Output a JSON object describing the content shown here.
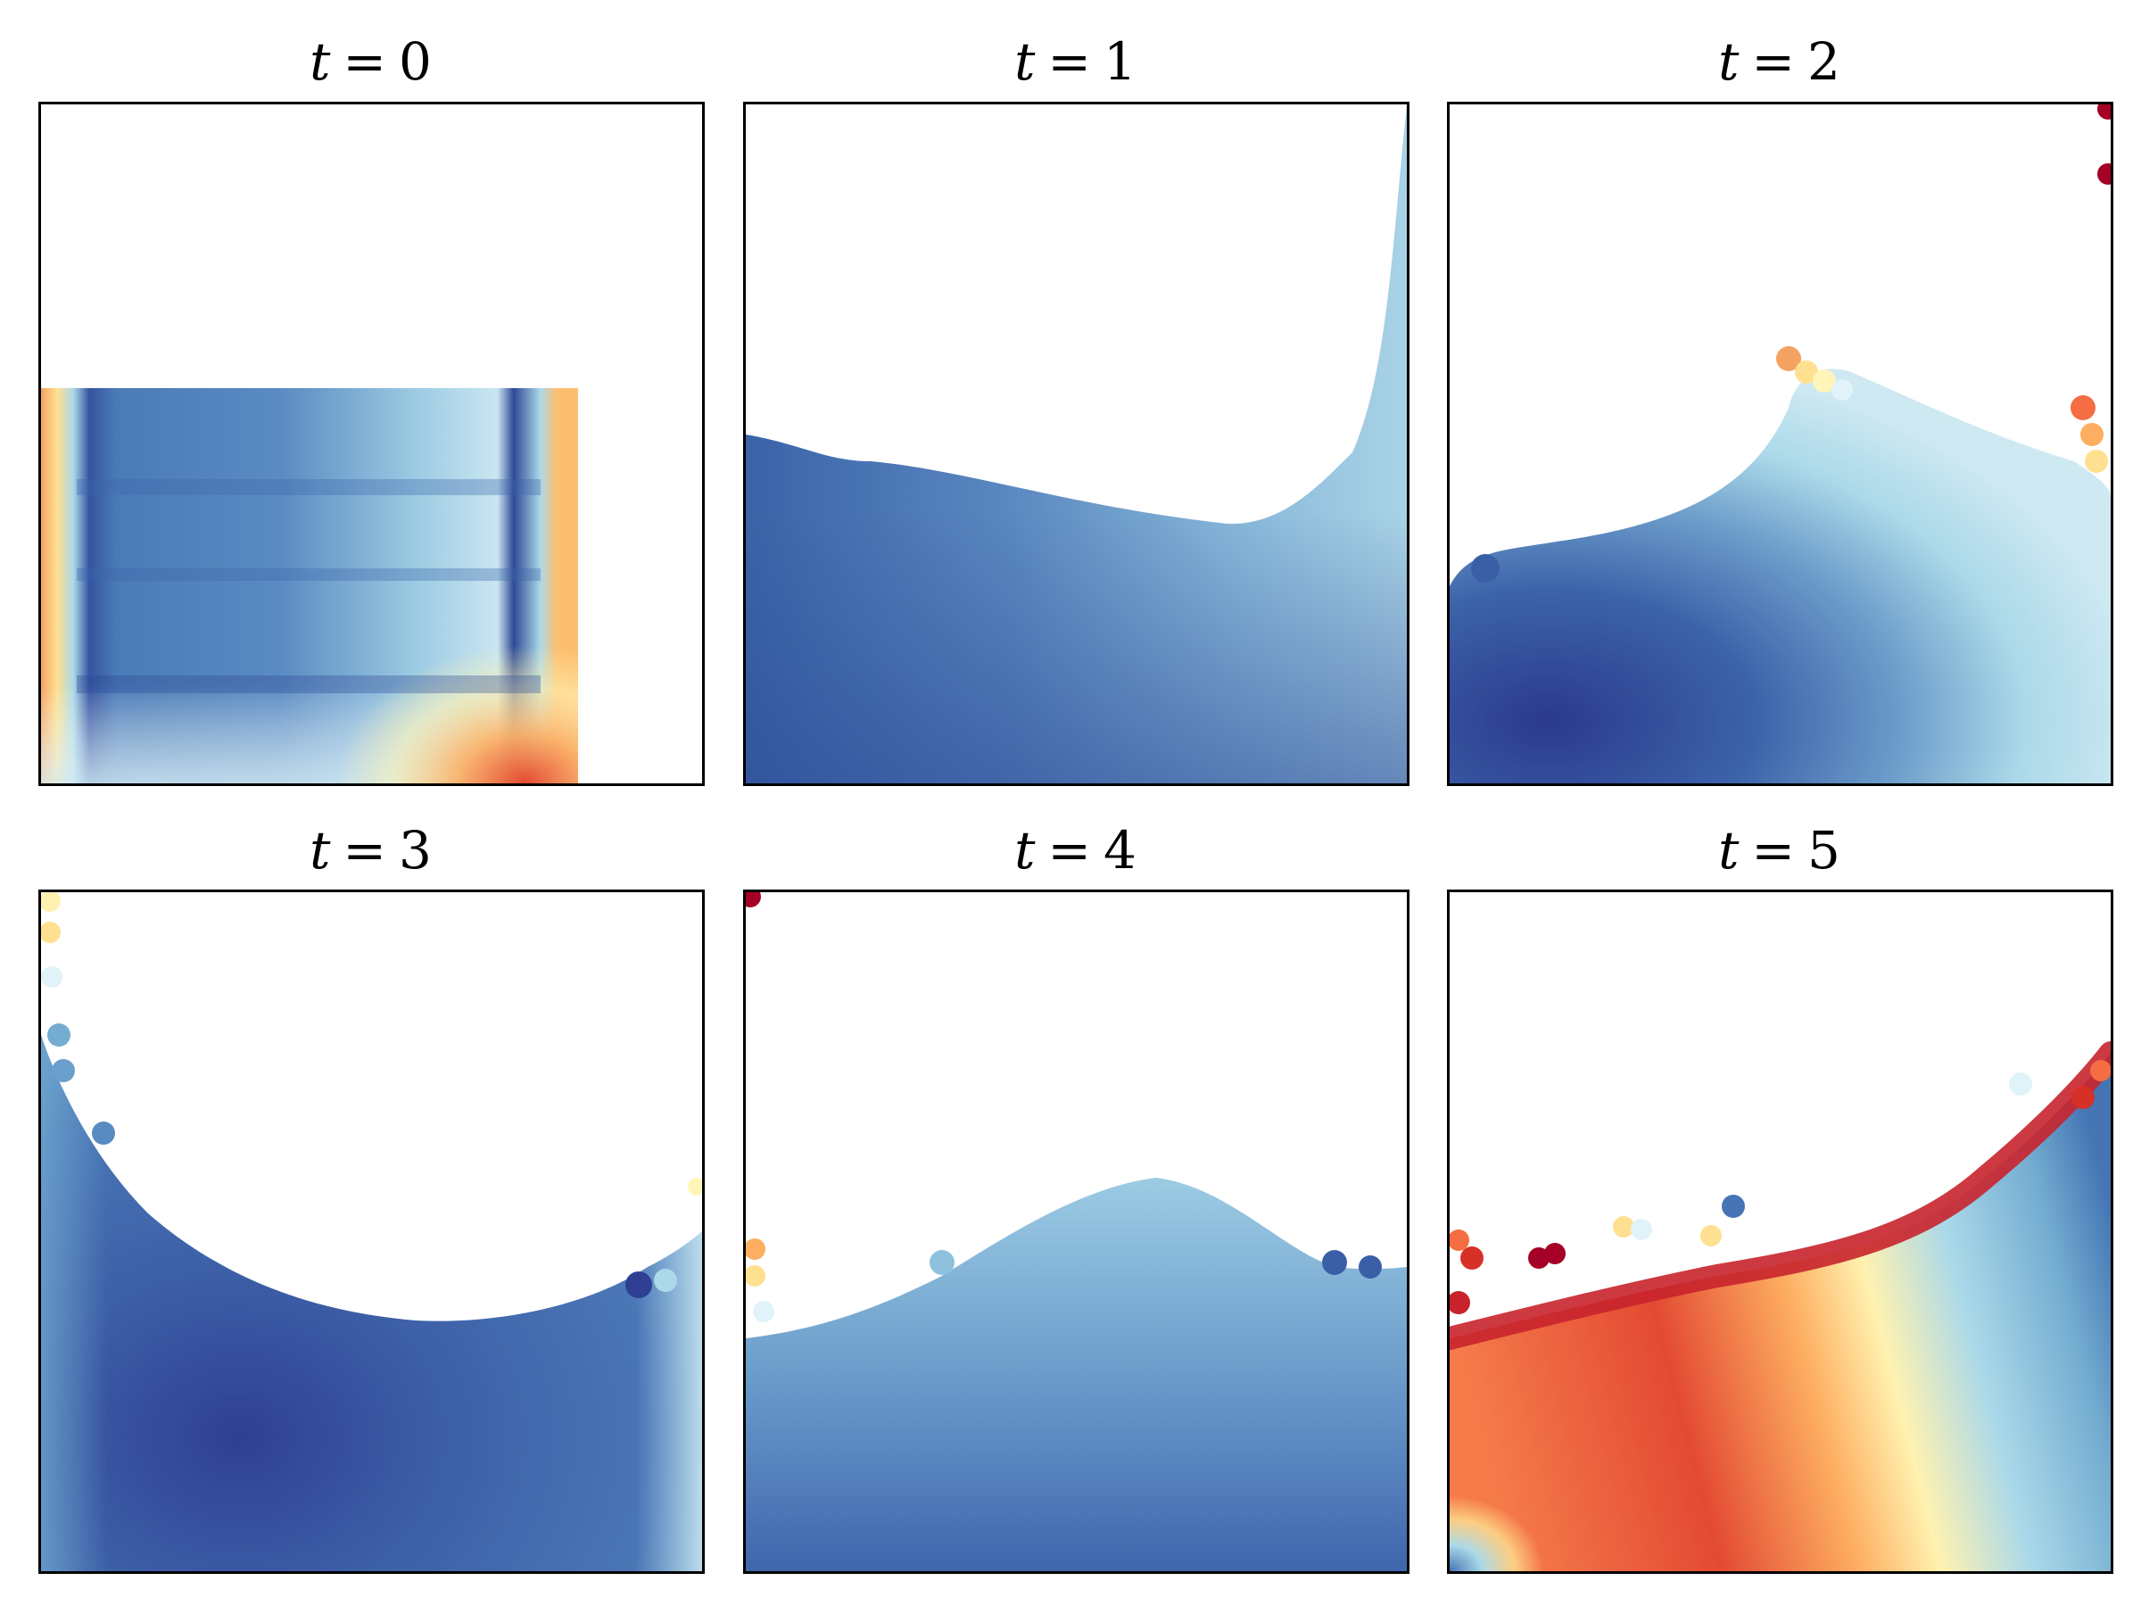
{
  "chart_data": [
    {
      "type": "scatter",
      "title_var": "t",
      "title_eq": "=",
      "title_val": "0",
      "xlim": [
        0,
        1
      ],
      "ylim": [
        0,
        1
      ],
      "fluid_region": "dam block on left, x 0–0.81, height 0–0.58",
      "colormap": "RdYlBu",
      "dominant_colors": [
        "#4575b4",
        "#abd9e9",
        "#fee090",
        "#d73027"
      ],
      "ticks_visible": false
    },
    {
      "type": "scatter",
      "title_var": "t",
      "title_eq": "=",
      "title_val": "1",
      "xlim": [
        0,
        1
      ],
      "ylim": [
        0,
        1
      ],
      "fluid_region": "spread across floor, run-up on right wall",
      "colormap": "RdYlBu",
      "dominant_colors": [
        "#3a63a8",
        "#6e9ecb",
        "#abd9e9"
      ],
      "ticks_visible": false
    },
    {
      "type": "scatter",
      "title_var": "t",
      "title_eq": "=",
      "title_val": "2",
      "xlim": [
        0,
        1
      ],
      "ylim": [
        0,
        1
      ],
      "fluid_region": "wave curling back from right wall",
      "colormap": "RdYlBu",
      "dominant_colors": [
        "#313695",
        "#4575b4",
        "#abd9e9",
        "#fdae61",
        "#a50026"
      ],
      "ticks_visible": false
    },
    {
      "type": "scatter",
      "title_var": "t",
      "title_eq": "=",
      "title_val": "3",
      "xlim": [
        0,
        1
      ],
      "ylim": [
        0,
        1
      ],
      "fluid_region": "bowl-shaped free surface, splash on left wall",
      "colormap": "RdYlBu",
      "dominant_colors": [
        "#313695",
        "#4575b4",
        "#74add1",
        "#abd9e9"
      ],
      "ticks_visible": false
    },
    {
      "type": "scatter",
      "title_var": "t",
      "title_eq": "=",
      "title_val": "4",
      "xlim": [
        0,
        1
      ],
      "ylim": [
        0,
        1
      ],
      "fluid_region": "central hump, sloshing",
      "colormap": "RdYlBu",
      "dominant_colors": [
        "#4575b4",
        "#74add1",
        "#abd9e9",
        "#a50026"
      ],
      "ticks_visible": false
    },
    {
      "type": "scatter",
      "title_var": "t",
      "title_eq": "=",
      "title_val": "5",
      "xlim": [
        0,
        1
      ],
      "ylim": [
        0,
        1
      ],
      "fluid_region": "surface rising to right, high-pressure red band",
      "colormap": "RdYlBu",
      "dominant_colors": [
        "#d73027",
        "#f46d43",
        "#fee090",
        "#abd9e9",
        "#4575b4",
        "#a50026"
      ],
      "ticks_visible": false
    }
  ]
}
